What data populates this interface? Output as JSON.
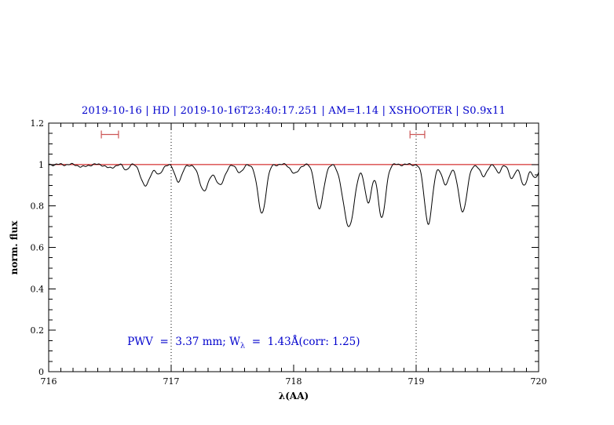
{
  "chart_data": {
    "type": "line",
    "title": "2019-10-16 | HD | 2019-10-16T23:40:17.251 | AM=1.14 | XSHOOTER | S0.9x11",
    "title_color": "#0000cd",
    "xlabel": "λ(AA)",
    "ylabel": "norm. flux",
    "xlim": [
      716,
      720
    ],
    "ylim": [
      0,
      1.2
    ],
    "xticks": [
      716,
      717,
      718,
      719,
      720
    ],
    "yticks": [
      0,
      0.2,
      0.4,
      0.6,
      0.8,
      1,
      1.2
    ],
    "x_minor_step": 0.1,
    "y_minor_step": 0.05,
    "grid": false,
    "legend": false,
    "series_color": "#000000",
    "continuum_level": 1.0,
    "reference_line": {
      "y": 1.0,
      "color": "#cc0000"
    },
    "dotted_vlines": {
      "x": [
        717,
        719
      ],
      "color": "#000000"
    },
    "range_markers": {
      "y": 1.145,
      "color": "#cc5555",
      "intervals": [
        [
          716.43,
          716.57
        ],
        [
          718.95,
          719.07
        ]
      ]
    },
    "annotation": {
      "pre": "PWV  =  3.37 mm; W",
      "sub": "λ",
      "post": "  =  1.43Å(corr: 1.25)",
      "color": "#0000cd"
    },
    "absorption_lines": [
      {
        "center": 716.28,
        "depth": 0.012,
        "sigma": 0.03
      },
      {
        "center": 716.5,
        "depth": 0.018,
        "sigma": 0.03
      },
      {
        "center": 716.63,
        "depth": 0.025,
        "sigma": 0.02
      },
      {
        "center": 716.79,
        "depth": 0.105,
        "sigma": 0.035
      },
      {
        "center": 716.9,
        "depth": 0.05,
        "sigma": 0.025
      },
      {
        "center": 717.06,
        "depth": 0.08,
        "sigma": 0.03
      },
      {
        "center": 717.27,
        "depth": 0.125,
        "sigma": 0.04
      },
      {
        "center": 717.4,
        "depth": 0.1,
        "sigma": 0.035
      },
      {
        "center": 717.56,
        "depth": 0.035,
        "sigma": 0.03
      },
      {
        "center": 717.74,
        "depth": 0.235,
        "sigma": 0.033
      },
      {
        "center": 718.01,
        "depth": 0.045,
        "sigma": 0.03
      },
      {
        "center": 718.21,
        "depth": 0.215,
        "sigma": 0.033
      },
      {
        "center": 718.45,
        "depth": 0.3,
        "sigma": 0.045
      },
      {
        "center": 718.61,
        "depth": 0.185,
        "sigma": 0.028
      },
      {
        "center": 718.72,
        "depth": 0.26,
        "sigma": 0.03
      },
      {
        "center": 719.1,
        "depth": 0.285,
        "sigma": 0.032
      },
      {
        "center": 719.24,
        "depth": 0.1,
        "sigma": 0.028
      },
      {
        "center": 719.38,
        "depth": 0.225,
        "sigma": 0.035
      },
      {
        "center": 719.55,
        "depth": 0.06,
        "sigma": 0.025
      },
      {
        "center": 719.67,
        "depth": 0.04,
        "sigma": 0.02
      },
      {
        "center": 719.78,
        "depth": 0.065,
        "sigma": 0.025
      },
      {
        "center": 719.88,
        "depth": 0.1,
        "sigma": 0.028
      },
      {
        "center": 719.97,
        "depth": 0.065,
        "sigma": 0.025
      }
    ]
  }
}
